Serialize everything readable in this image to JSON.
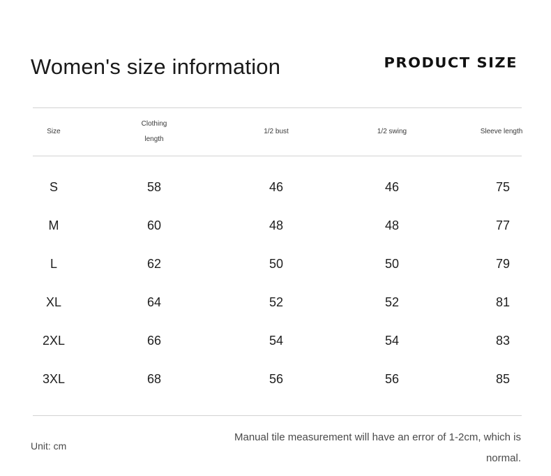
{
  "title": "Women's size information",
  "brand_heading": "PRODUCT SIZE",
  "table": {
    "headers": [
      {
        "line1": "Size",
        "line2": ""
      },
      {
        "line1": "Clothing",
        "line2": "length"
      },
      {
        "line1": "1/2 bust",
        "line2": ""
      },
      {
        "line1": "1/2 swing",
        "line2": ""
      },
      {
        "line1": "Sleeve length",
        "line2": ""
      }
    ],
    "rows": [
      [
        "S",
        "58",
        "46",
        "46",
        "75"
      ],
      [
        "M",
        "60",
        "48",
        "48",
        "77"
      ],
      [
        "L",
        "62",
        "50",
        "50",
        "79"
      ],
      [
        "XL",
        "64",
        "52",
        "52",
        "81"
      ],
      [
        "2XL",
        "66",
        "54",
        "54",
        "83"
      ],
      [
        "3XL",
        "68",
        "56",
        "56",
        "85"
      ]
    ]
  },
  "footer": {
    "unit": "Unit: cm",
    "note": "Manual tile measurement will have an error of 1-2cm, which is normal."
  }
}
